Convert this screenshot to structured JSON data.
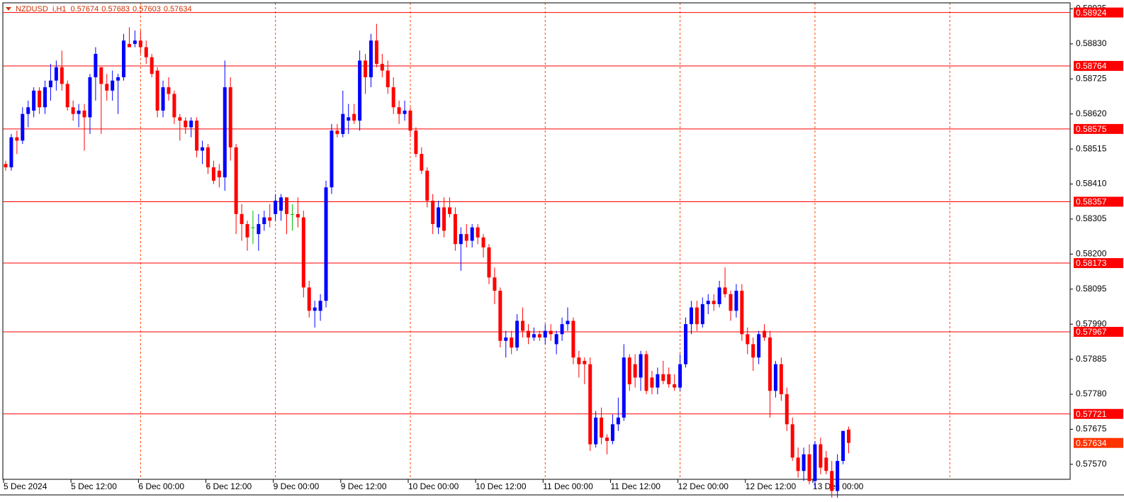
{
  "chart_data": {
    "type": "candlestick",
    "title": "NZDUSD_i,H1",
    "categories": [
      "5 Dec 2024",
      null,
      null,
      null,
      null,
      null,
      null,
      null,
      null,
      null,
      null,
      null,
      "5 Dec 12:00",
      null,
      null,
      null,
      null,
      null,
      null,
      null,
      null,
      null,
      null,
      null,
      "6 Dec 00:00",
      null,
      null,
      null,
      null,
      null,
      null,
      null,
      null,
      null,
      null,
      null,
      "6 Dec 12:00",
      null,
      null,
      null,
      null,
      null,
      null,
      null,
      null,
      null,
      null,
      null,
      "9 Dec 00:00",
      null,
      null,
      null,
      null,
      null,
      null,
      null,
      null,
      null,
      null,
      null,
      "9 Dec 12:00",
      null,
      null,
      null,
      null,
      null,
      null,
      null,
      null,
      null,
      null,
      null,
      "10 Dec 00:00",
      null,
      null,
      null,
      null,
      null,
      null,
      null,
      null,
      null,
      null,
      null,
      "10 Dec 12:00",
      null,
      null,
      null,
      null,
      null,
      null,
      null,
      null,
      null,
      null,
      null,
      "11 Dec 00:00",
      null,
      null,
      null,
      null,
      null,
      null,
      null,
      null,
      null,
      null,
      null,
      "11 Dec 12:00",
      null,
      null,
      null,
      null,
      null,
      null,
      null,
      null,
      null,
      null,
      null,
      "12 Dec 00:00",
      null,
      null,
      null,
      null,
      null,
      null,
      null,
      null,
      null,
      null,
      null,
      "12 Dec 12:00",
      null,
      null,
      null,
      null,
      null,
      null,
      null,
      null,
      null,
      null,
      null,
      "13 Dec 00:00",
      null,
      null,
      null,
      null,
      null,
      null
    ],
    "open": [
      0.5847,
      0.5846,
      0.5855,
      0.5854,
      0.5862,
      0.5863,
      0.5869,
      0.5864,
      0.587,
      0.5872,
      0.5876,
      0.5871,
      0.5864,
      0.5862,
      0.5863,
      0.5861,
      0.5873,
      0.5876,
      0.5871,
      0.5869,
      0.5872,
      0.5873,
      0.5883,
      0.5883,
      0.5884,
      0.5882,
      0.5879,
      0.5875,
      0.5863,
      0.587,
      0.5868,
      0.5861,
      0.586,
      0.5858,
      0.586,
      0.5851,
      0.5852,
      0.5846,
      0.5845,
      0.5843,
      0.587,
      0.5852,
      0.5832,
      0.5829,
      0.5828,
      0.5826,
      0.5829,
      0.5831,
      0.5832,
      0.5833,
      0.5837,
      0.5832,
      0.5832,
      0.5831,
      0.581,
      0.5803,
      0.5803,
      0.5806,
      0.584,
      0.5857,
      0.5856,
      0.586,
      0.5862,
      0.586,
      0.5878,
      0.5873,
      0.5884,
      0.5877,
      0.5875,
      0.587,
      0.5864,
      0.5862,
      0.5863,
      0.5857,
      0.585,
      0.5845,
      0.5836,
      0.5828,
      0.5834,
      0.5834,
      0.5832,
      0.5823,
      0.5826,
      0.5824,
      0.5828,
      0.5825,
      0.5822,
      0.5813,
      0.5809,
      0.5794,
      0.5795,
      0.5792,
      0.58,
      0.5797,
      0.5795,
      0.5796,
      0.5795,
      0.5797,
      0.5793,
      0.5796,
      0.5799,
      0.58,
      0.5789,
      0.5788,
      0.5787,
      0.5763,
      0.5771,
      0.5765,
      0.5764,
      0.5769,
      0.5771,
      0.5789,
      0.5787,
      0.5783,
      0.579,
      0.5783,
      0.578,
      0.5784,
      0.5784,
      0.5781,
      0.578,
      0.5787,
      0.5799,
      0.5804,
      0.5799,
      0.5805,
      0.5806,
      0.5805,
      0.581,
      0.5808,
      0.5803,
      0.5809,
      0.5796,
      0.5793,
      0.5789,
      0.5797,
      0.5795,
      0.5779,
      0.5787,
      0.5778,
      0.5769,
      0.5759,
      0.5755,
      0.576,
      0.5752,
      0.5763,
      0.5759,
      0.5755,
      0.5749,
      0.5758,
      0.57674
    ],
    "high": [
      0.5848,
      0.5856,
      0.5857,
      0.5864,
      0.5866,
      0.587,
      0.587,
      0.5872,
      0.5877,
      0.5878,
      0.5881,
      0.5872,
      0.5866,
      0.5865,
      0.5865,
      0.5874,
      0.5882,
      0.5876,
      0.5874,
      0.5875,
      0.5874,
      0.5886,
      0.5888,
      0.5887,
      0.5887,
      0.5884,
      0.588,
      0.5876,
      0.5872,
      0.5873,
      0.5869,
      0.5862,
      0.5861,
      0.5861,
      0.5861,
      0.5854,
      0.5853,
      0.5848,
      0.5847,
      0.5878,
      0.5873,
      0.5853,
      0.5835,
      0.583,
      0.5833,
      0.5832,
      0.5833,
      0.5835,
      0.5838,
      0.5838,
      0.5837,
      0.5835,
      0.5837,
      0.5833,
      0.5812,
      0.5806,
      0.5808,
      0.5842,
      0.5859,
      0.5859,
      0.5869,
      0.5865,
      0.5865,
      0.5881,
      0.588,
      0.5886,
      0.5889,
      0.588,
      0.5878,
      0.5873,
      0.5866,
      0.5866,
      0.5864,
      0.5858,
      0.5852,
      0.5846,
      0.5838,
      0.5836,
      0.5837,
      0.5837,
      0.5834,
      0.5828,
      0.5829,
      0.5829,
      0.5829,
      0.5826,
      0.5823,
      0.5816,
      0.581,
      0.5797,
      0.5797,
      0.5802,
      0.5804,
      0.5799,
      0.5798,
      0.5797,
      0.5799,
      0.5799,
      0.5797,
      0.5801,
      0.5804,
      0.5801,
      0.5791,
      0.5789,
      0.5789,
      0.5773,
      0.5774,
      0.5766,
      0.5772,
      0.5777,
      0.5793,
      0.579,
      0.579,
      0.5791,
      0.5791,
      0.5785,
      0.5786,
      0.5788,
      0.5786,
      0.5784,
      0.579,
      0.5801,
      0.5806,
      0.5806,
      0.5807,
      0.5808,
      0.5808,
      0.5812,
      0.5816,
      0.5809,
      0.5811,
      0.5811,
      0.5798,
      0.5795,
      0.5797,
      0.5799,
      0.5797,
      0.5788,
      0.5789,
      0.578,
      0.5771,
      0.5762,
      0.5762,
      0.5763,
      0.5764,
      0.5765,
      0.5761,
      0.5758,
      0.576,
      0.5767,
      0.57683
    ],
    "low": [
      0.5845,
      0.5845,
      0.585,
      0.5853,
      0.5858,
      0.5861,
      0.5862,
      0.5862,
      0.5866,
      0.5869,
      0.5869,
      0.5863,
      0.586,
      0.5858,
      0.5851,
      0.5856,
      0.5866,
      0.5856,
      0.5866,
      0.5866,
      0.5862,
      0.5872,
      0.5882,
      0.5882,
      0.588,
      0.5877,
      0.5873,
      0.5861,
      0.5861,
      0.5866,
      0.5859,
      0.5854,
      0.5856,
      0.5855,
      0.5849,
      0.5847,
      0.5844,
      0.5841,
      0.584,
      0.5839,
      0.5848,
      0.5826,
      0.5824,
      0.5821,
      0.5823,
      0.5821,
      0.5827,
      0.5828,
      0.583,
      0.583,
      0.5826,
      0.5827,
      0.5828,
      0.5807,
      0.5801,
      0.5798,
      0.58,
      0.5804,
      0.5838,
      0.5855,
      0.5855,
      0.5856,
      0.5859,
      0.5857,
      0.5868,
      0.587,
      0.5876,
      0.5873,
      0.5868,
      0.5862,
      0.5859,
      0.586,
      0.5855,
      0.5849,
      0.5844,
      0.5834,
      0.5826,
      0.5826,
      0.5825,
      0.5831,
      0.5821,
      0.5815,
      0.5822,
      0.5822,
      0.5823,
      0.5819,
      0.5811,
      0.5805,
      0.5792,
      0.5789,
      0.579,
      0.5791,
      0.5795,
      0.5793,
      0.5794,
      0.5794,
      0.5793,
      0.5794,
      0.579,
      0.5794,
      0.5797,
      0.5787,
      0.5783,
      0.5781,
      0.5761,
      0.5762,
      0.5763,
      0.576,
      0.5763,
      0.5767,
      0.577,
      0.5779,
      0.578,
      0.5779,
      0.5778,
      0.5778,
      0.5778,
      0.5781,
      0.578,
      0.5779,
      0.5779,
      0.5786,
      0.5796,
      0.5797,
      0.5798,
      0.5802,
      0.5803,
      0.5804,
      0.5807,
      0.58,
      0.5801,
      0.5794,
      0.579,
      0.5785,
      0.5787,
      0.5794,
      0.5771,
      0.5777,
      0.5776,
      0.5767,
      0.5758,
      0.5753,
      0.5752,
      0.5751,
      0.575,
      0.5754,
      0.5754,
      0.5747,
      0.5747,
      0.5757,
      0.57603
    ],
    "close": [
      0.5846,
      0.5855,
      0.5854,
      0.5862,
      0.5864,
      0.5869,
      0.5864,
      0.587,
      0.5872,
      0.5876,
      0.5871,
      0.5864,
      0.5862,
      0.5863,
      0.5861,
      0.5873,
      0.588,
      0.5871,
      0.5869,
      0.5872,
      0.5873,
      0.5884,
      0.5882,
      0.5884,
      0.5882,
      0.5879,
      0.5874,
      0.5863,
      0.587,
      0.5868,
      0.5861,
      0.586,
      0.5858,
      0.586,
      0.5851,
      0.5852,
      0.5846,
      0.5842,
      0.5843,
      0.587,
      0.5852,
      0.5832,
      0.5829,
      0.5825,
      0.5828,
      0.5829,
      0.5831,
      0.583,
      0.5836,
      0.5837,
      0.5832,
      0.5832,
      0.5831,
      0.581,
      0.5803,
      0.5804,
      0.5806,
      0.584,
      0.5857,
      0.5856,
      0.5862,
      0.5861,
      0.586,
      0.5878,
      0.5873,
      0.5884,
      0.5877,
      0.5875,
      0.587,
      0.5864,
      0.5862,
      0.5863,
      0.5857,
      0.585,
      0.5845,
      0.5836,
      0.5829,
      0.5834,
      0.5827,
      0.5832,
      0.5823,
      0.5826,
      0.5824,
      0.5828,
      0.5825,
      0.5822,
      0.5813,
      0.5809,
      0.5794,
      0.5795,
      0.5792,
      0.58,
      0.5797,
      0.5795,
      0.5796,
      0.5795,
      0.5797,
      0.5796,
      0.5796,
      0.5799,
      0.58,
      0.5789,
      0.5787,
      0.5787,
      0.5763,
      0.5771,
      0.5765,
      0.5764,
      0.5769,
      0.5771,
      0.5789,
      0.5781,
      0.5783,
      0.579,
      0.5779,
      0.578,
      0.5784,
      0.5782,
      0.5781,
      0.578,
      0.5787,
      0.5799,
      0.5804,
      0.5799,
      0.5805,
      0.5806,
      0.5805,
      0.581,
      0.5808,
      0.5803,
      0.5809,
      0.5796,
      0.5793,
      0.5789,
      0.5796,
      0.5795,
      0.5779,
      0.5787,
      0.5778,
      0.5769,
      0.5759,
      0.5755,
      0.576,
      0.5752,
      0.5763,
      0.5756,
      0.5755,
      0.5749,
      0.5758,
      0.5767,
      0.57634
    ],
    "up_color": "#0000ff",
    "down_color": "#ff0000",
    "doji_color": "#00c000",
    "hlines": [
      0.58924,
      0.58764,
      0.58575,
      0.58357,
      0.58173,
      0.57967,
      0.57721
    ],
    "hline_color": "#ff0000",
    "last_price_color": "#ff3300",
    "vgrid_color": "#ff4500",
    "ylim": [
      0.57525,
      0.58953
    ],
    "yticks": [
      0.58935,
      {
        "value": 0.5883,
        "label": "0.58830"
      },
      0.58725,
      {
        "value": 0.5862,
        "label": "0.58620"
      },
      0.58515,
      {
        "value": 0.5841,
        "label": "0.58410"
      },
      0.58305,
      {
        "value": 0.582,
        "label": "0.58200"
      },
      0.58095,
      {
        "value": 0.5799,
        "label": "0.57990"
      },
      0.57885,
      {
        "value": 0.5778,
        "label": "0.57780"
      },
      0.57675,
      {
        "value": 0.5757,
        "label": "0.57570"
      }
    ]
  }
}
